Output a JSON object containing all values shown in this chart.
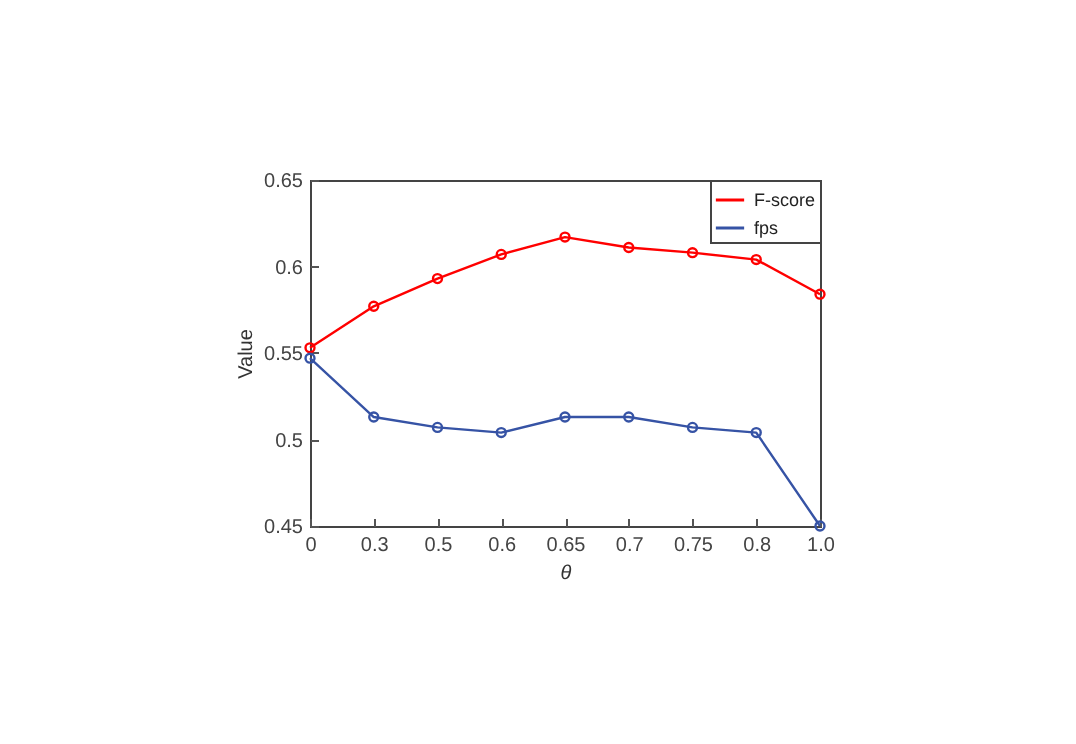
{
  "chart_data": {
    "type": "line",
    "xlabel": "θ",
    "ylabel": "Value",
    "categories": [
      "0",
      "0.3",
      "0.5",
      "0.6",
      "0.65",
      "0.7",
      "0.75",
      "0.8",
      "1.0"
    ],
    "series": [
      {
        "name": "F-score",
        "color": "#ff0000",
        "values": [
          0.553,
          0.577,
          0.593,
          0.607,
          0.617,
          0.611,
          0.608,
          0.604,
          0.584
        ]
      },
      {
        "name": "fps",
        "color": "#3653a5",
        "values": [
          0.547,
          0.513,
          0.507,
          0.504,
          0.513,
          0.513,
          0.507,
          0.504,
          0.45
        ]
      }
    ],
    "ylim": [
      0.45,
      0.65
    ],
    "yticks": [
      0.45,
      0.5,
      0.55,
      0.6,
      0.65
    ],
    "legend": "top right",
    "marker": "circle",
    "line_style": "solid",
    "grid": false
  }
}
